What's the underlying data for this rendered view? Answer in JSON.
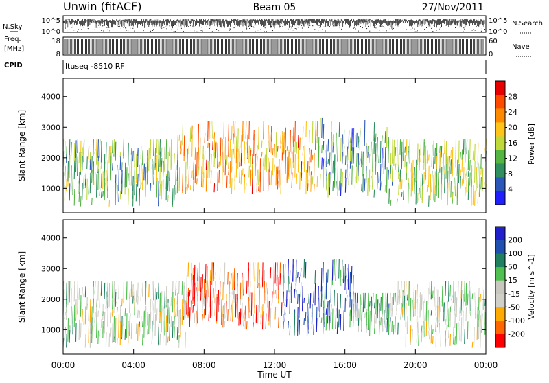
{
  "header": {
    "station": "Unwin (fitACF)",
    "beam": "Beam 05",
    "date": "27/Nov/2011"
  },
  "strips": {
    "nsky_label": "N.Sky",
    "nsky_ticks": [
      "10^5",
      "10^0"
    ],
    "nsearch_label": "N.Search",
    "nsearch_ticks": [
      "10^5",
      "10^0"
    ],
    "freq_label_1": "Freq.",
    "freq_label_2": "[MHz]",
    "freq_ticks": [
      "18",
      "8"
    ],
    "nave_label": "Nave",
    "nave_ticks": [
      "60",
      "0"
    ],
    "cpid_label": "CPID",
    "cpid_text": "ltuseq -8510 RF"
  },
  "colors": {
    "power_scale": [
      "#2020ff",
      "#2a57b8",
      "#2f8f5f",
      "#55b543",
      "#bfd83a",
      "#ffc419",
      "#ff8a00",
      "#ff4a00",
      "#e80000"
    ],
    "velocity_scale": [
      "#ff0000",
      "#ff6600",
      "#ffaa00",
      "#d0d0c8",
      "#c8c8c0",
      "#50c050",
      "#208060",
      "#2050b0",
      "#2020cc"
    ]
  },
  "chart_data": [
    {
      "type": "heatmap",
      "title": "",
      "xlabel": "Time UT",
      "ylabel": "Slant Range [km]",
      "xlim": [
        0,
        24
      ],
      "ylim": [
        200,
        4600
      ],
      "x_tick_labels": [
        "00:00",
        "04:00",
        "08:00",
        "12:00",
        "16:00",
        "20:00",
        "00:00"
      ],
      "y_tick_values": [
        1000,
        2000,
        3000,
        4000
      ],
      "colorbar": {
        "label": "Power [dB]",
        "ticks": [
          4,
          8,
          12,
          16,
          20,
          24,
          28
        ],
        "range": [
          0,
          32
        ]
      },
      "echo_bands": [
        {
          "t_start": 0.0,
          "t_end": 6.5,
          "range_low": 400,
          "range_high": 2600,
          "typical_value": 12
        },
        {
          "t_start": 6.5,
          "t_end": 14.5,
          "range_low": 800,
          "range_high": 3200,
          "typical_value": 22
        },
        {
          "t_start": 14.5,
          "t_end": 18.5,
          "range_low": 700,
          "range_high": 3300,
          "typical_value": 10
        },
        {
          "t_start": 18.5,
          "t_end": 24.0,
          "range_low": 400,
          "range_high": 2600,
          "typical_value": 14
        }
      ]
    },
    {
      "type": "heatmap",
      "title": "",
      "xlabel": "Time UT",
      "ylabel": "Slant Range [km]",
      "xlim": [
        0,
        24
      ],
      "ylim": [
        200,
        4600
      ],
      "x_tick_labels": [
        "00:00",
        "04:00",
        "08:00",
        "12:00",
        "16:00",
        "20:00",
        "00:00"
      ],
      "y_tick_values": [
        1000,
        2000,
        3000,
        4000
      ],
      "colorbar": {
        "label": "Velocity [m s^-1]",
        "ticks": [
          -200,
          -100,
          -50,
          -15,
          15,
          50,
          100,
          200
        ],
        "range": [
          -250,
          250
        ]
      },
      "echo_bands": [
        {
          "t_start": 0.0,
          "t_end": 7.0,
          "range_low": 400,
          "range_high": 2600,
          "typical_value": 0
        },
        {
          "t_start": 7.0,
          "t_end": 12.5,
          "range_low": 1000,
          "range_high": 3200,
          "typical_value": -150
        },
        {
          "t_start": 12.5,
          "t_end": 16.5,
          "range_low": 800,
          "range_high": 3300,
          "typical_value": 170
        },
        {
          "t_start": 16.5,
          "t_end": 19.0,
          "range_low": 800,
          "range_high": 2200,
          "typical_value": 40
        },
        {
          "t_start": 19.0,
          "t_end": 24.0,
          "range_low": 400,
          "range_high": 2600,
          "typical_value": 0
        }
      ]
    }
  ]
}
